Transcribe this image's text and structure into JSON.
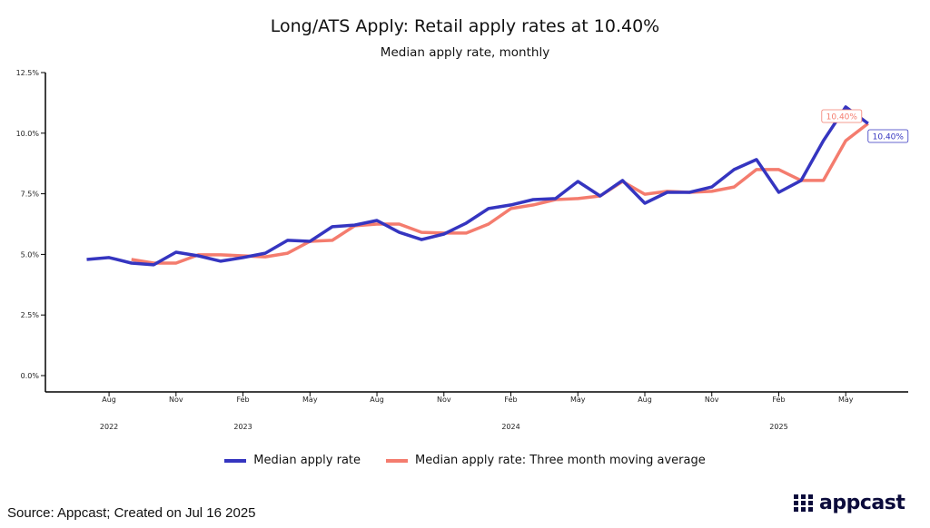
{
  "chart_data": {
    "type": "line",
    "title": "Long/ATS Apply: Retail apply rates at 10.40%",
    "subtitle": "Median apply rate, monthly",
    "xlabel": "",
    "ylabel": "",
    "ylim": [
      0,
      12.5
    ],
    "yticks": [
      "0.0%",
      "2.5%",
      "5.0%",
      "7.5%",
      "10.0%",
      "12.5%"
    ],
    "ytick_values": [
      0,
      2.5,
      5,
      7.5,
      10,
      12.5
    ],
    "x": [
      "2022-07",
      "2022-08",
      "2022-09",
      "2022-10",
      "2022-11",
      "2022-12",
      "2023-01",
      "2023-02",
      "2023-03",
      "2023-04",
      "2023-05",
      "2023-06",
      "2023-07",
      "2023-08",
      "2023-09",
      "2023-10",
      "2023-11",
      "2023-12",
      "2024-01",
      "2024-02",
      "2024-03",
      "2024-04",
      "2024-05",
      "2024-06",
      "2024-07",
      "2024-08",
      "2024-09",
      "2024-10",
      "2024-11",
      "2024-12",
      "2025-01",
      "2025-02",
      "2025-03",
      "2025-04",
      "2025-05",
      "2025-06"
    ],
    "xticks": [
      {
        "label": "Aug",
        "index": 1
      },
      {
        "label": "Nov",
        "index": 4
      },
      {
        "label": "Feb",
        "index": 7
      },
      {
        "label": "May",
        "index": 10
      },
      {
        "label": "Aug",
        "index": 13
      },
      {
        "label": "Nov",
        "index": 16
      },
      {
        "label": "Feb",
        "index": 19
      },
      {
        "label": "May",
        "index": 22
      },
      {
        "label": "Aug",
        "index": 25
      },
      {
        "label": "Nov",
        "index": 28
      },
      {
        "label": "Feb",
        "index": 31
      },
      {
        "label": "May",
        "index": 34
      }
    ],
    "years": [
      {
        "label": "2022",
        "index": 1
      },
      {
        "label": "2023",
        "index": 7
      },
      {
        "label": "2024",
        "index": 19
      },
      {
        "label": "2025",
        "index": 31
      }
    ],
    "series": [
      {
        "name": "Median apply rate",
        "color": "#3535c0",
        "values": [
          4.79,
          4.87,
          4.64,
          4.57,
          5.09,
          4.94,
          4.72,
          4.87,
          5.05,
          5.58,
          5.54,
          6.14,
          6.21,
          6.4,
          5.91,
          5.61,
          5.84,
          6.29,
          6.89,
          7.04,
          7.26,
          7.3,
          8.01,
          7.41,
          8.05,
          7.11,
          7.56,
          7.56,
          7.78,
          8.5,
          8.91,
          7.56,
          8.05,
          9.69,
          11.08,
          10.4
        ],
        "end_label": "10.40%"
      },
      {
        "name": "Median apply rate: Three month moving average",
        "color": "#f47c6e",
        "values": [
          null,
          null,
          4.79,
          4.64,
          4.64,
          4.98,
          4.98,
          4.94,
          4.9,
          5.05,
          5.54,
          5.58,
          6.18,
          6.25,
          6.25,
          5.91,
          5.88,
          5.88,
          6.25,
          6.89,
          7.04,
          7.26,
          7.3,
          7.41,
          8.01,
          7.48,
          7.6,
          7.56,
          7.6,
          7.78,
          8.5,
          8.5,
          8.05,
          8.05,
          9.69,
          10.4
        ],
        "end_label": "10.40%"
      }
    ],
    "grid": false,
    "legend": "bottom"
  },
  "footer": {
    "source": "Source: Appcast; Created on Jul 16 2025",
    "logo": "appcast"
  }
}
